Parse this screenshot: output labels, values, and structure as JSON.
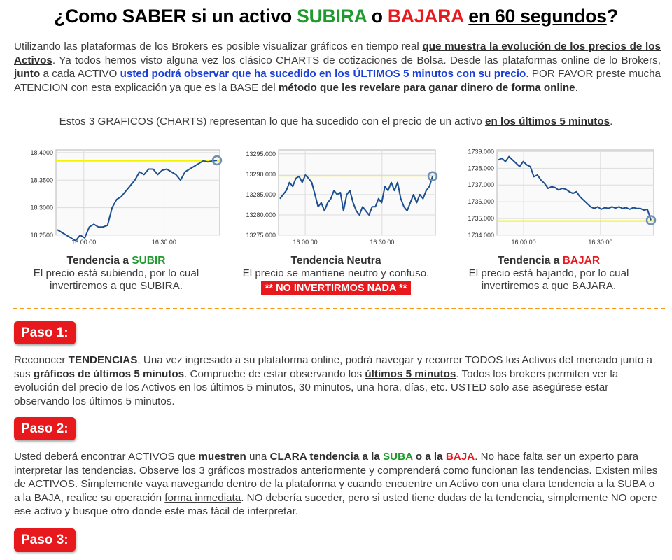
{
  "title": {
    "p1": "¿Como SABER si un activo ",
    "up": "SUBIRA",
    "p2": " o ",
    "down": "BAJARA",
    "p3": " ",
    "time": "en 60 segundos",
    "p4": "?"
  },
  "intro": {
    "t1": "Utilizando las plataformas de los Brokers es posible visualizar gráficos en tiempo real ",
    "b1": "que muestra la evolución de los precios de los Activos",
    "t2": ". Ya todos hemos visto alguna vez los clásico CHARTS de cotizaciones de Bolsa. Desde las plataformas online de lo Brokers, ",
    "b2": "junto",
    "t3": " a cada ACTIVO ",
    "blue1": "usted podrá observar que ha sucedido en los ",
    "blue2": "ÚLTIMOS 5 minutos con su precio",
    "t4": ". POR FAVOR preste mucha ATENCION con esta explicación ya que es la BASE del ",
    "b3": "método que les revelare para ganar dinero de forma online",
    "t5": "."
  },
  "charts_caption": {
    "text": "Estos 3 GRAFICOS (CHARTS) representan lo que ha sucedido con el precio de un activo ",
    "bold": "en los últimos 5 minutos",
    "end": "."
  },
  "chart_data": [
    {
      "type": "line",
      "x_ticks": [
        "16:00:00",
        "16:30:00"
      ],
      "y_ticks": [
        "18.4000",
        "18.3500",
        "18.3000",
        "18.2500"
      ],
      "ylim": [
        18.25,
        18.405
      ],
      "reference_line": 18.385,
      "trend": "up",
      "values": [
        18.26,
        18.255,
        18.25,
        18.245,
        18.24,
        18.25,
        18.245,
        18.265,
        18.27,
        18.265,
        18.265,
        18.268,
        18.3,
        18.315,
        18.32,
        18.33,
        18.34,
        18.35,
        18.365,
        18.36,
        18.37,
        18.37,
        18.36,
        18.368,
        18.37,
        18.365,
        18.36,
        18.35,
        18.365,
        18.37,
        18.375,
        18.38,
        18.385,
        18.383,
        18.385,
        18.386
      ],
      "colors": {
        "line": "#1c4f8f",
        "reference": "#f4f400",
        "marker": "#6e8fb0"
      }
    },
    {
      "type": "line",
      "x_ticks": [
        "16:00:00",
        "16:30:00"
      ],
      "y_ticks": [
        "13295.000",
        "13290.000",
        "13285.000",
        "13280.000",
        "13275.000"
      ],
      "ylim": [
        13275,
        13296
      ],
      "reference_line": 13289.6,
      "trend": "neutral",
      "values": [
        13284,
        13285,
        13286,
        13288,
        13287,
        13289,
        13289.5,
        13288,
        13289.8,
        13289,
        13288,
        13285,
        13282,
        13283,
        13281,
        13283,
        13284,
        13286,
        13285,
        13285.5,
        13281,
        13285,
        13286,
        13283,
        13281,
        13280,
        13282,
        13281,
        13280,
        13282,
        13282,
        13284,
        13283,
        13287,
        13286,
        13288,
        13286,
        13288,
        13284,
        13282,
        13281,
        13283,
        13285,
        13283,
        13285,
        13284,
        13286,
        13287,
        13289.5
      ],
      "colors": {
        "line": "#1c4f8f",
        "reference": "#f4f400",
        "marker": "#6e8fb0"
      }
    },
    {
      "type": "line",
      "x_ticks": [
        "16:00:00",
        "16:30:00"
      ],
      "y_ticks": [
        "1739.000",
        "1738.000",
        "1737.000",
        "1736.000",
        "1735.000",
        "1734.000"
      ],
      "ylim": [
        1734,
        1739.1
      ],
      "reference_line": 1734.85,
      "trend": "down",
      "values": [
        1738.5,
        1738.6,
        1738.4,
        1738.7,
        1738.5,
        1738.3,
        1738.1,
        1738.4,
        1738.2,
        1738.1,
        1737.5,
        1737.6,
        1737.3,
        1737.1,
        1736.8,
        1736.9,
        1736.85,
        1736.7,
        1736.8,
        1736.75,
        1736.6,
        1736.5,
        1736.6,
        1736.3,
        1736.1,
        1735.9,
        1735.7,
        1735.6,
        1735.7,
        1735.55,
        1735.65,
        1735.6,
        1735.7,
        1735.62,
        1735.7,
        1735.6,
        1735.65,
        1735.55,
        1735.65,
        1735.6,
        1735.6,
        1735.5,
        1735.55,
        1734.9
      ],
      "colors": {
        "line": "#1c4f8f",
        "reference": "#f4f400",
        "marker": "#6e8fb0"
      }
    }
  ],
  "captions": [
    {
      "head_pre": "Tendencia a ",
      "head_word": "SUBIR",
      "line1": "El precio está subiendo, por lo cual",
      "line2": "invertiremos a que SUBIRA."
    },
    {
      "head": "Tendencia Neutra",
      "line1": "El precio se mantiene neutro y confuso.",
      "badge": "** NO INVERTIRMOS NADA **"
    },
    {
      "head_pre": "Tendencia a ",
      "head_word": "BAJAR",
      "line1": "El precio está bajando, por lo cual",
      "line2": "invertiremos a que BAJARA."
    }
  ],
  "steps": [
    {
      "label": "Paso 1:",
      "t1": "Reconocer ",
      "b1": "TENDENCIAS",
      "t2": ". Una vez ingresado a su plataforma online, podrá navegar y recorrer TODOS los Activos del mercado junto a sus ",
      "b2": "gráficos de últimos 5 minutos",
      "t3": ". Compruebe de estar observando los ",
      "b3": "últimos 5 minutos",
      "t4": ". Todos los brokers permiten ver la evolución del precio de los Activos en los últimos 5 minutos, 30 minutos, una hora, días, etc. USTED solo ase asegúrese estar observando los últimos 5 minutos."
    },
    {
      "label": "Paso 2:",
      "t1": "Usted deberá encontrar ACTIVOS que ",
      "b1": "muestren",
      "t2": " una ",
      "b2": "CLARA",
      "b2b": " tendencia a la ",
      "g1": "SUBA",
      "b3": " o a la ",
      "r1": "BAJA",
      "t3": ". No hace falta ser un experto para interpretar las tendencias. Observe los 3 gráficos mostrados anteriormente y comprenderá como funcionan las tendencias. Existen miles de ACTIVOS. Simplemente vaya navegando dentro de la plataforma y cuando encuentre un Activo con una clara tendencia a la SUBA o a la BAJA, realice su operación ",
      "u1": "forma inmediata",
      "t4": ". NO debería suceder, pero si usted tiene dudas de la tendencia, simplemente NO opere ese activo y busque otro donde este mas fácil de interpretar."
    },
    {
      "label": "Paso 3:"
    }
  ]
}
